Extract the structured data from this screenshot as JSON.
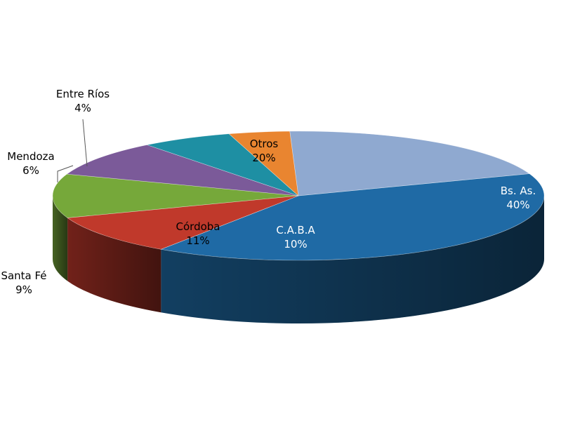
{
  "chart_data": {
    "type": "pie",
    "title": "",
    "legend": "none",
    "slices": [
      {
        "name": "Bs. As.",
        "value": 40,
        "label": "40%",
        "color": "#1f6aa5",
        "label_color": "#ffffff"
      },
      {
        "name": "C.A.B.A",
        "value": 10,
        "label": "10%",
        "color": "#c0392b",
        "label_color": "#ffffff"
      },
      {
        "name": "Córdoba",
        "value": 11,
        "label": "11%",
        "color": "#76a83a",
        "label_color": "#000000"
      },
      {
        "name": "Santa Fé",
        "value": 9,
        "label": "9%",
        "color": "#7b5a99",
        "label_color": "#000000"
      },
      {
        "name": "Mendoza",
        "value": 6,
        "label": "6%",
        "color": "#1e8fa3",
        "label_color": "#000000"
      },
      {
        "name": "Entre Ríos",
        "value": 4,
        "label": "4%",
        "color": "#e98530",
        "label_color": "#000000"
      },
      {
        "name": "Otros",
        "value": 20,
        "label": "20%",
        "color": "#8fa9d0",
        "label_color": "#000000"
      }
    ]
  }
}
